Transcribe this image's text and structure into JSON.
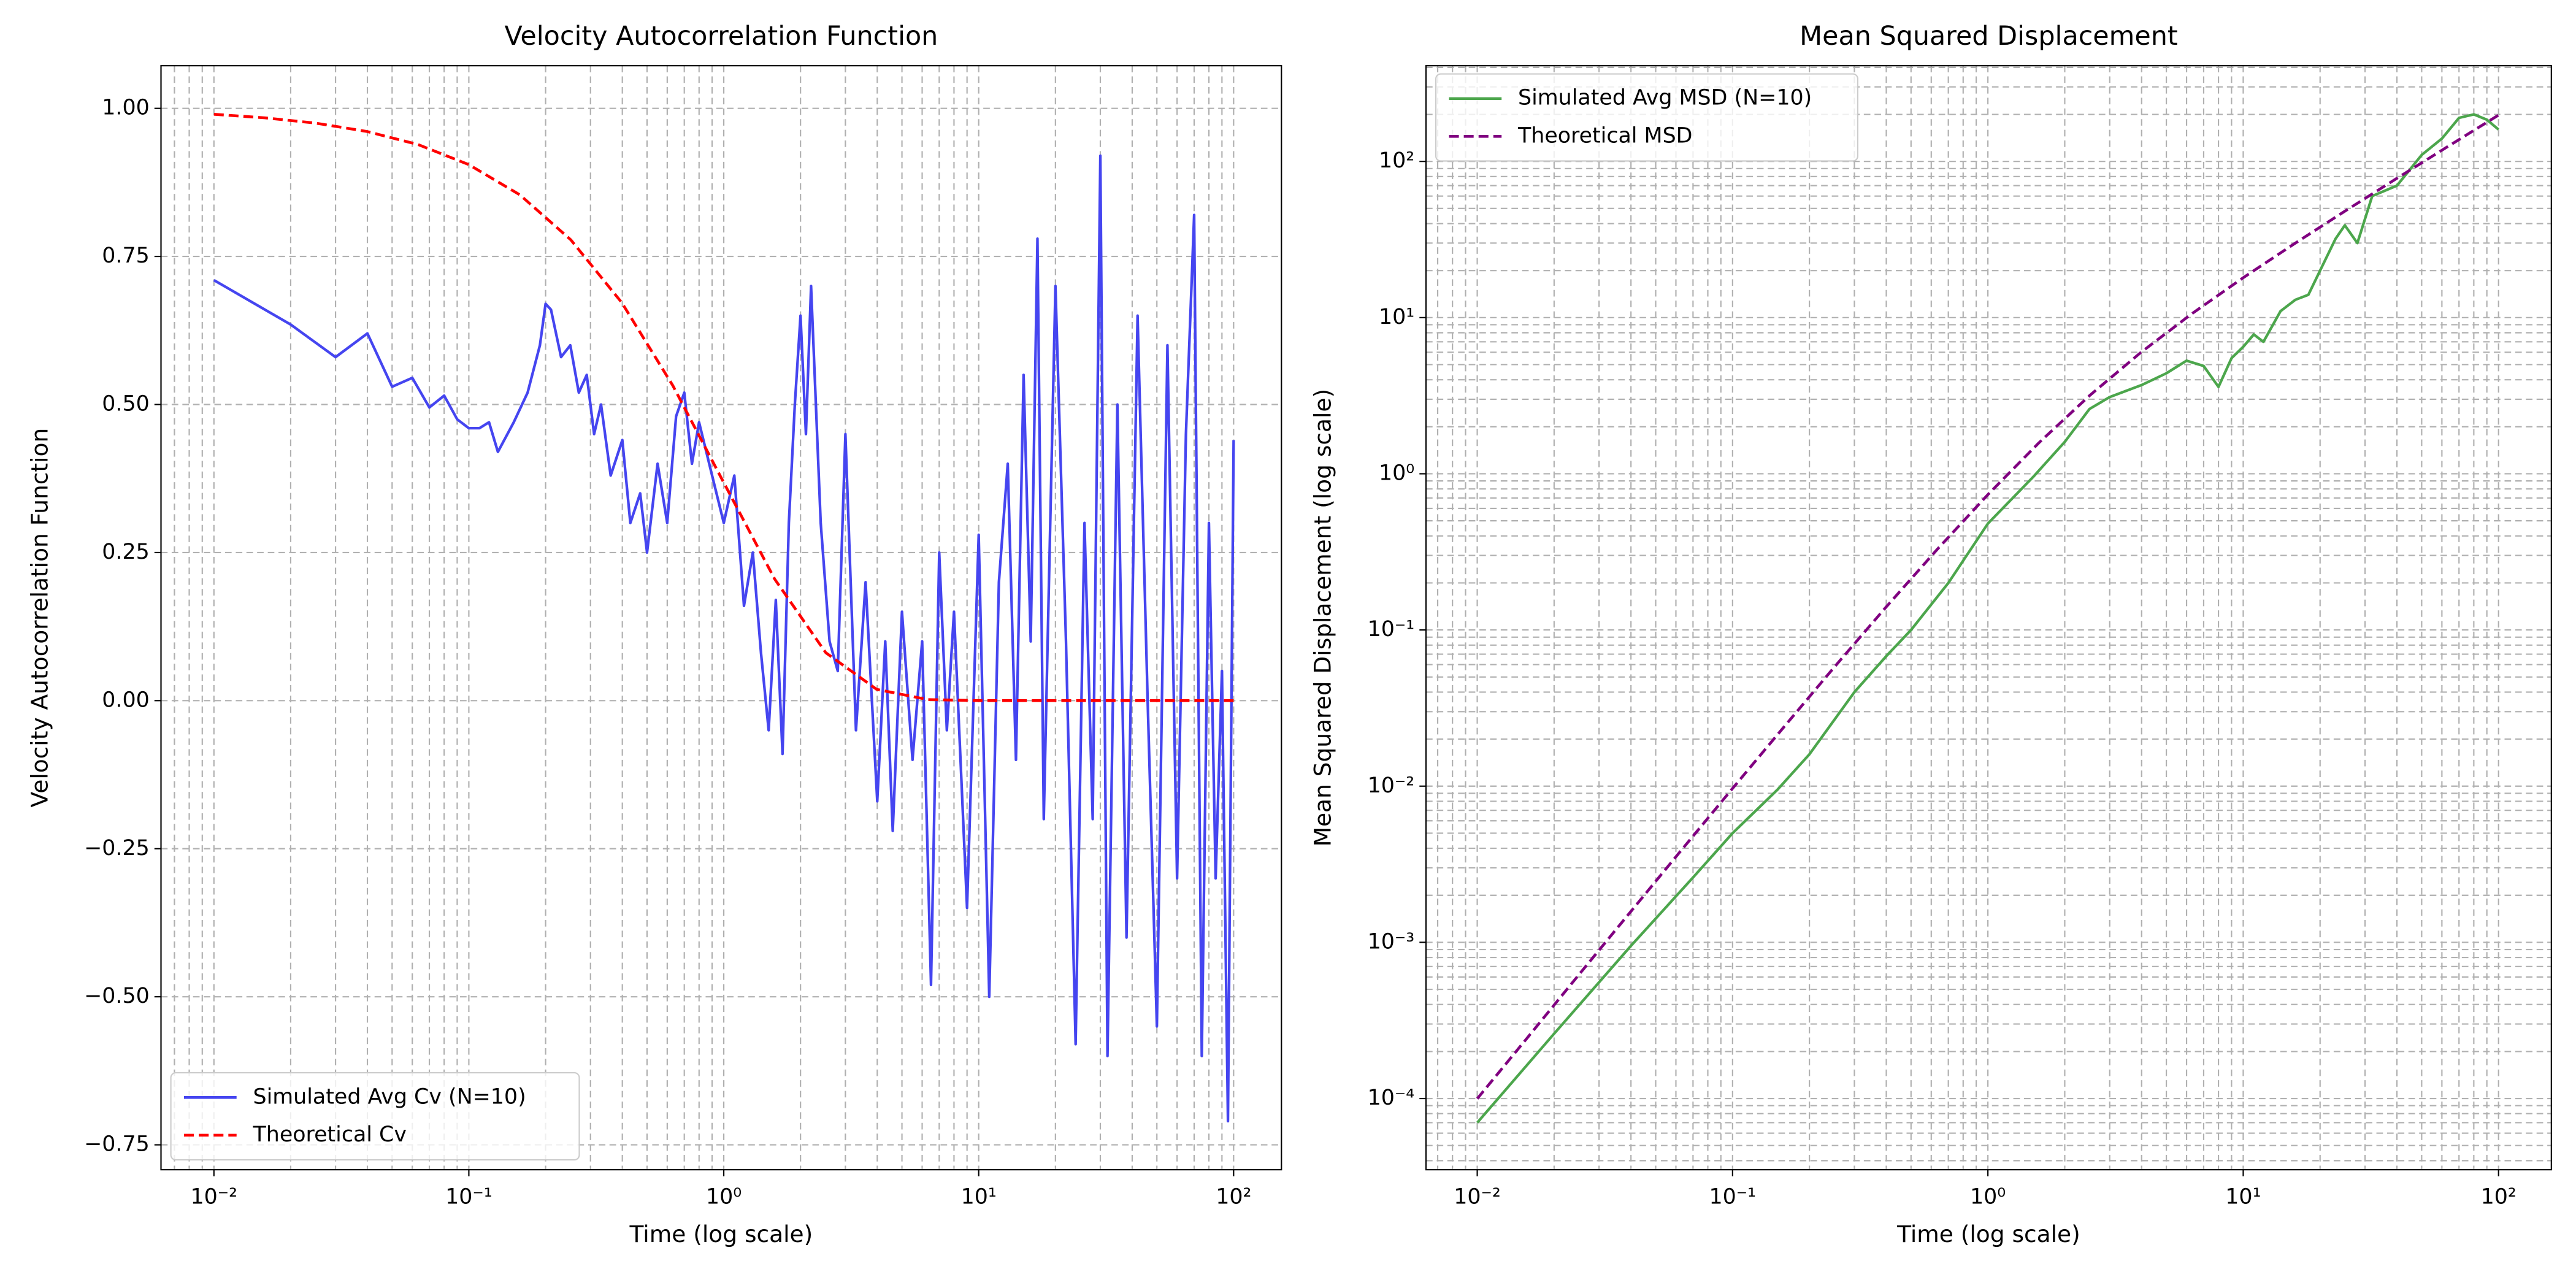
{
  "chart_data": [
    {
      "type": "line",
      "title": "Velocity Autocorrelation Function",
      "xlabel": "Time (log scale)",
      "ylabel": "Velocity Autocorrelation Function",
      "xscale": "log",
      "yscale": "linear",
      "grid": true,
      "minor_grid": true,
      "legend": "lower left",
      "xlim": [
        0.0062,
        154
      ],
      "ylim": [
        -0.792,
        1.072
      ],
      "xticks": [
        {
          "value": 0.01,
          "label": "10⁻²"
        },
        {
          "value": 0.1,
          "label": "10⁻¹"
        },
        {
          "value": 1,
          "label": "10⁰"
        },
        {
          "value": 10,
          "label": "10¹"
        },
        {
          "value": 100,
          "label": "10²"
        }
      ],
      "yticks": [
        {
          "value": -0.75,
          "label": "−0.75"
        },
        {
          "value": -0.5,
          "label": "−0.50"
        },
        {
          "value": -0.25,
          "label": "−0.25"
        },
        {
          "value": 0,
          "label": "0.00"
        },
        0.25,
        {
          "value": 0.5,
          "label": "0.50"
        },
        0.75,
        {
          "value": 1,
          "label": "1.00"
        }
      ],
      "series": [
        {
          "name": "Simulated Avg Cv (N=10)",
          "color": "#4545f0",
          "linestyle": "-",
          "x": [
            0.01,
            0.02,
            0.03,
            0.04,
            0.05,
            0.06,
            0.07,
            0.08,
            0.09,
            0.1,
            0.11,
            0.12,
            0.13,
            0.15,
            0.17,
            0.19,
            0.2,
            0.21,
            0.23,
            0.25,
            0.27,
            0.29,
            0.31,
            0.33,
            0.36,
            0.4,
            0.43,
            0.47,
            0.5,
            0.55,
            0.6,
            0.65,
            0.7,
            0.75,
            0.8,
            0.9,
            1,
            1.1,
            1.2,
            1.3,
            1.4,
            1.5,
            1.6,
            1.7,
            1.8,
            1.9,
            2,
            2.1,
            2.2,
            2.4,
            2.6,
            2.8,
            3,
            3.3,
            3.6,
            4,
            4.3,
            4.6,
            5,
            5.5,
            6,
            6.5,
            7,
            7.5,
            8,
            9,
            10,
            11,
            12,
            13,
            14,
            15,
            16,
            17,
            18,
            20,
            22,
            24,
            26,
            28,
            30,
            32,
            35,
            38,
            42,
            46,
            50,
            55,
            60,
            65,
            70,
            75,
            80,
            85,
            90,
            95,
            100
          ],
          "values": [
            0.71,
            0.635,
            0.58,
            0.62,
            0.53,
            0.545,
            0.495,
            0.515,
            0.475,
            0.46,
            0.46,
            0.47,
            0.42,
            0.47,
            0.52,
            0.6,
            0.67,
            0.66,
            0.58,
            0.6,
            0.52,
            0.55,
            0.45,
            0.5,
            0.38,
            0.44,
            0.3,
            0.35,
            0.25,
            0.4,
            0.3,
            0.48,
            0.52,
            0.4,
            0.47,
            0.38,
            0.3,
            0.38,
            0.16,
            0.25,
            0.08,
            -0.05,
            0.17,
            -0.09,
            0.3,
            0.5,
            0.65,
            0.45,
            0.7,
            0.3,
            0.1,
            0.05,
            0.45,
            -0.05,
            0.2,
            -0.17,
            0.1,
            -0.22,
            0.15,
            -0.1,
            0.1,
            -0.48,
            0.25,
            -0.05,
            0.15,
            -0.35,
            0.28,
            -0.5,
            0.2,
            0.4,
            -0.1,
            0.55,
            0.1,
            0.78,
            -0.2,
            0.7,
            0.1,
            -0.58,
            0.3,
            -0.2,
            0.92,
            -0.6,
            0.5,
            -0.4,
            0.65,
            0,
            -0.55,
            0.6,
            -0.3,
            0.45,
            0.82,
            -0.6,
            0.3,
            -0.3,
            0.05,
            -0.71,
            0.44
          ]
        },
        {
          "name": "Theoretical Cv",
          "color": "#ff0000",
          "linestyle": "--",
          "x": [
            0.01,
            0.01585,
            0.02512,
            0.03981,
            0.0631,
            0.1,
            0.1585,
            0.2512,
            0.3981,
            0.631,
            1,
            1.585,
            2.512,
            3.981,
            6.31,
            10,
            15.85,
            25.12,
            39.81,
            63.1,
            100
          ],
          "values": [
            0.99,
            0.984,
            0.975,
            0.961,
            0.939,
            0.905,
            0.854,
            0.778,
            0.672,
            0.532,
            0.368,
            0.205,
            0.081,
            0.019,
            0.0018,
            0,
            0,
            0,
            0,
            0,
            0
          ]
        }
      ]
    },
    {
      "type": "line",
      "title": "Mean Squared Displacement",
      "xlabel": "Time (log scale)",
      "ylabel": "Mean Squared Displacement (log scale)",
      "xscale": "log",
      "yscale": "log",
      "grid": true,
      "minor_grid": true,
      "legend": "upper left",
      "xlim": [
        0.0063,
        161
      ],
      "ylim": [
        3.5e-05,
        410
      ],
      "xticks": [
        {
          "value": 0.01,
          "label": "10⁻²"
        },
        {
          "value": 0.1,
          "label": "10⁻¹"
        },
        {
          "value": 1,
          "label": "10⁰"
        },
        {
          "value": 10,
          "label": "10¹"
        },
        {
          "value": 100,
          "label": "10²"
        }
      ],
      "yticks": [
        {
          "value": 0.0001,
          "label": "10⁻⁴"
        },
        {
          "value": 0.001,
          "label": "10⁻³"
        },
        {
          "value": 0.01,
          "label": "10⁻²"
        },
        {
          "value": 0.1,
          "label": "10⁻¹"
        },
        {
          "value": 1,
          "label": "10⁰"
        },
        {
          "value": 10,
          "label": "10¹"
        },
        {
          "value": 100,
          "label": "10²"
        }
      ],
      "series": [
        {
          "name": "Simulated Avg MSD (N=10)",
          "color": "#4ca64c",
          "linestyle": "-",
          "x": [
            0.01,
            0.02,
            0.04,
            0.07,
            0.1,
            0.15,
            0.2,
            0.3,
            0.4,
            0.5,
            0.7,
            1,
            1.5,
            2,
            2.5,
            3,
            4,
            5,
            6,
            7,
            8,
            9,
            10,
            11,
            12,
            14,
            16,
            18,
            20,
            23,
            25,
            28,
            32,
            40,
            50,
            60,
            70,
            80,
            90,
            100
          ],
          "values": [
            7e-05,
            0.00026,
            0.00095,
            0.0026,
            0.005,
            0.0095,
            0.016,
            0.04,
            0.068,
            0.1,
            0.2,
            0.48,
            0.95,
            1.6,
            2.6,
            3.1,
            3.7,
            4.4,
            5.3,
            4.9,
            3.6,
            5.5,
            6.5,
            7.8,
            7,
            11,
            13,
            14,
            20,
            32,
            39,
            30,
            60,
            70,
            110,
            140,
            190,
            200,
            185,
            160
          ]
        },
        {
          "name": "Theoretical MSD",
          "color": "#800080",
          "linestyle": "--",
          "x": [
            0.01,
            0.01585,
            0.02512,
            0.03981,
            0.0631,
            0.1,
            0.1585,
            0.2512,
            0.3981,
            0.631,
            1,
            1.585,
            2.512,
            3.981,
            6.31,
            10,
            15.85,
            25.12,
            39.81,
            63.1,
            100
          ],
          "values": [
            9.97e-05,
            0.000249,
            0.000626,
            0.001564,
            0.0039,
            0.00967,
            0.0238,
            0.0582,
            0.1394,
            0.326,
            0.7358,
            1.58,
            3.186,
            6,
            10.62,
            18,
            29.7,
            48.24,
            77.62,
            124.2,
            198
          ]
        }
      ]
    }
  ]
}
